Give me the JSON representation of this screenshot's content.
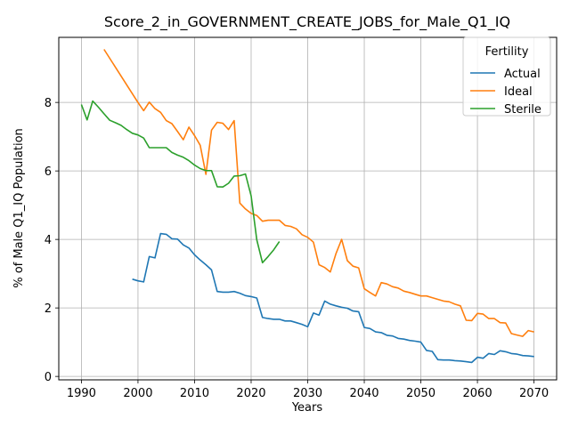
{
  "chart_data": {
    "type": "line",
    "title": "Score_2_in_GOVERNMENT_CREATE_JOBS_for_Male_Q1_IQ",
    "xlabel": "Years",
    "ylabel": "% of Male Q1_IQ Population",
    "xlim": [
      1986,
      2074
    ],
    "ylim": [
      -0.1,
      9.9
    ],
    "xticks": [
      1990,
      2000,
      2010,
      2020,
      2030,
      2040,
      2050,
      2060,
      2070
    ],
    "yticks": [
      0,
      2,
      4,
      6,
      8
    ],
    "grid": true,
    "legend": {
      "title": "Fertility",
      "placement": "top-right"
    },
    "series": [
      {
        "name": "Actual",
        "color": "#1f77b4",
        "x": [
          1999,
          2000,
          2001,
          2002,
          2003,
          2004,
          2005,
          2006,
          2007,
          2008,
          2009,
          2010,
          2011,
          2012,
          2013,
          2014,
          2015,
          2016,
          2017,
          2018,
          2019,
          2020,
          2021,
          2022,
          2023,
          2024,
          2025,
          2026,
          2027,
          2028,
          2029,
          2030,
          2031,
          2032,
          2033,
          2034,
          2035,
          2036,
          2037,
          2038,
          2039,
          2040,
          2041,
          2042,
          2043,
          2044,
          2045,
          2046,
          2047,
          2048,
          2049,
          2050,
          2051,
          2052,
          2053,
          2054,
          2055,
          2056,
          2057,
          2058,
          2059,
          2060,
          2061,
          2062,
          2063,
          2064,
          2065,
          2066,
          2067,
          2068,
          2069,
          2070
        ],
        "y": [
          2.84,
          2.79,
          2.76,
          3.5,
          3.46,
          4.17,
          4.15,
          4.02,
          4.01,
          3.84,
          3.75,
          3.55,
          3.4,
          3.26,
          3.11,
          2.48,
          2.46,
          2.46,
          2.48,
          2.43,
          2.36,
          2.33,
          2.29,
          1.72,
          1.69,
          1.67,
          1.67,
          1.62,
          1.62,
          1.57,
          1.52,
          1.45,
          1.85,
          1.79,
          2.2,
          2.11,
          2.06,
          2.02,
          1.99,
          1.91,
          1.89,
          1.43,
          1.4,
          1.3,
          1.28,
          1.2,
          1.18,
          1.11,
          1.09,
          1.05,
          1.03,
          1.0,
          0.76,
          0.73,
          0.49,
          0.48,
          0.48,
          0.46,
          0.45,
          0.43,
          0.41,
          0.56,
          0.53,
          0.67,
          0.64,
          0.75,
          0.72,
          0.67,
          0.65,
          0.61,
          0.6,
          0.58
        ]
      },
      {
        "name": "Ideal",
        "color": "#ff7f0e",
        "x": [
          1994,
          2000,
          2001,
          2002,
          2003,
          2004,
          2005,
          2006,
          2007,
          2008,
          2009,
          2010,
          2011,
          2012,
          2013,
          2014,
          2015,
          2016,
          2017,
          2018,
          2019,
          2020,
          2021,
          2022,
          2023,
          2024,
          2025,
          2026,
          2027,
          2028,
          2029,
          2030,
          2031,
          2032,
          2033,
          2034,
          2035,
          2036,
          2037,
          2038,
          2039,
          2040,
          2041,
          2042,
          2043,
          2044,
          2045,
          2046,
          2047,
          2048,
          2049,
          2050,
          2051,
          2052,
          2053,
          2054,
          2055,
          2056,
          2057,
          2058,
          2059,
          2060,
          2061,
          2062,
          2063,
          2064,
          2065,
          2066,
          2067,
          2068,
          2069,
          2070
        ],
        "y": [
          9.55,
          8.0,
          7.76,
          8.01,
          7.82,
          7.71,
          7.47,
          7.38,
          7.15,
          6.91,
          7.28,
          7.03,
          6.75,
          5.9,
          7.19,
          7.42,
          7.39,
          7.21,
          7.47,
          5.06,
          4.89,
          4.76,
          4.7,
          4.53,
          4.56,
          4.56,
          4.56,
          4.41,
          4.38,
          4.31,
          4.14,
          4.06,
          3.92,
          3.26,
          3.18,
          3.05,
          3.59,
          4.0,
          3.38,
          3.22,
          3.17,
          2.56,
          2.45,
          2.35,
          2.74,
          2.7,
          2.62,
          2.58,
          2.49,
          2.45,
          2.4,
          2.35,
          2.35,
          2.3,
          2.25,
          2.2,
          2.18,
          2.11,
          2.06,
          1.64,
          1.63,
          1.84,
          1.82,
          1.69,
          1.69,
          1.57,
          1.56,
          1.25,
          1.21,
          1.17,
          1.34,
          1.3
        ]
      },
      {
        "name": "Sterile",
        "color": "#2ca02c",
        "x": [
          1990,
          1991,
          1992,
          1993,
          1994,
          1995,
          1996,
          1997,
          1998,
          1999,
          2000,
          2001,
          2002,
          2003,
          2004,
          2005,
          2006,
          2007,
          2008,
          2009,
          2010,
          2011,
          2012,
          2013,
          2014,
          2015,
          2016,
          2017,
          2018,
          2019,
          2020,
          2021,
          2022,
          2023,
          2024,
          2025
        ],
        "y": [
          7.94,
          7.49,
          8.04,
          7.86,
          7.67,
          7.48,
          7.41,
          7.33,
          7.21,
          7.1,
          7.05,
          6.96,
          6.68,
          6.68,
          6.68,
          6.68,
          6.54,
          6.46,
          6.4,
          6.3,
          6.17,
          6.07,
          6.01,
          6.01,
          5.54,
          5.53,
          5.64,
          5.85,
          5.86,
          5.91,
          5.27,
          3.99,
          3.32,
          3.5,
          3.7,
          3.94
        ]
      }
    ]
  }
}
